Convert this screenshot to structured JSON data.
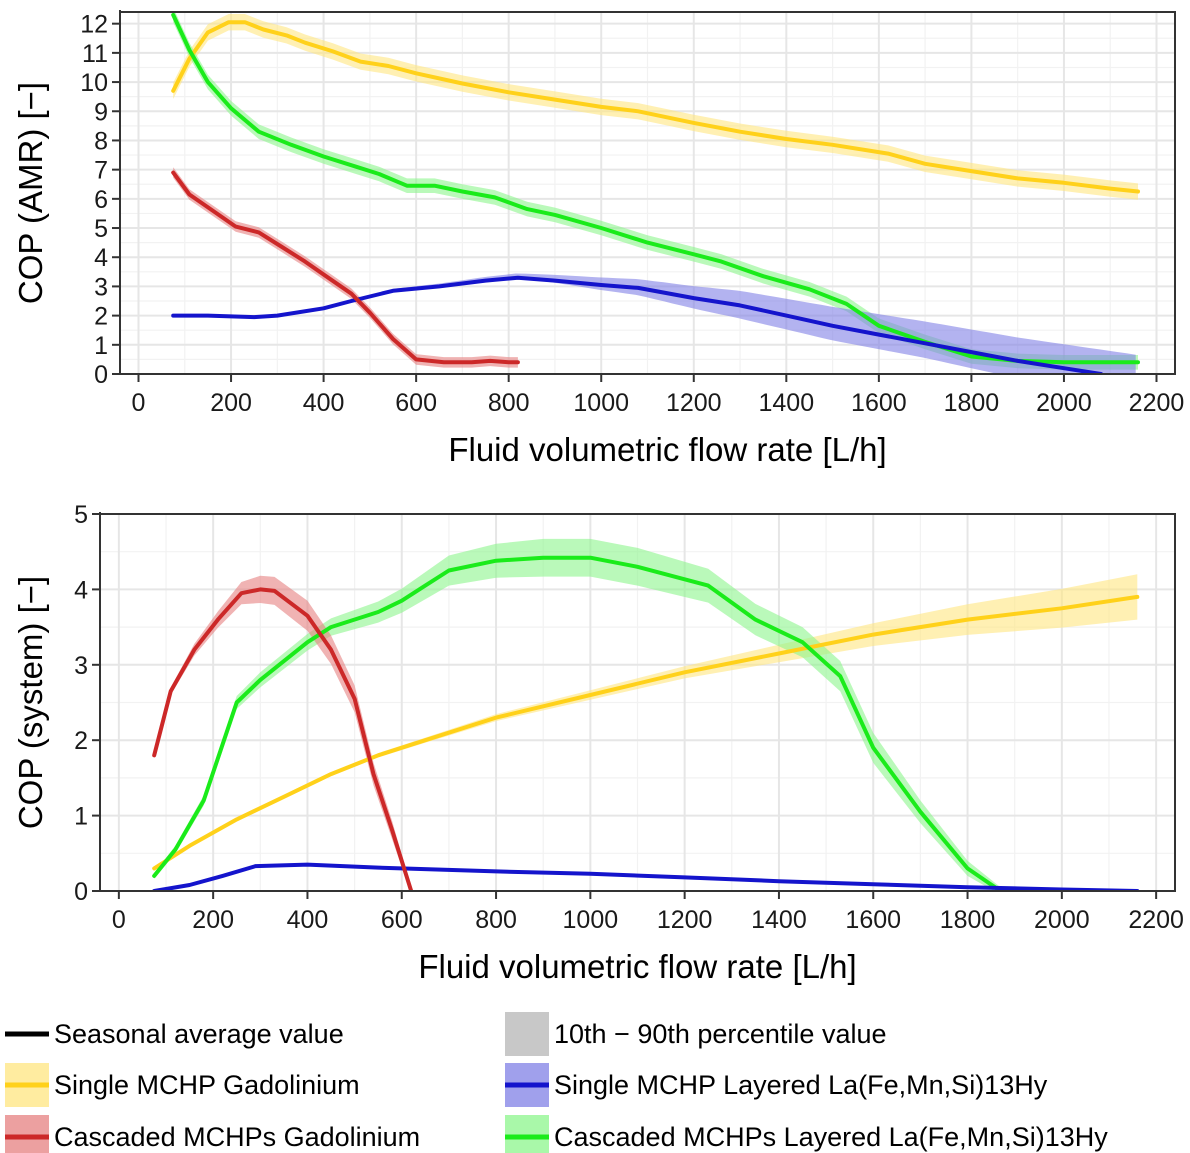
{
  "chart_data": [
    {
      "type": "line",
      "xlabel": "Fluid volumetric flow rate [L/h]",
      "ylabel": "COP (AMR) [−]",
      "xlim": [
        -40,
        2240
      ],
      "ylim": [
        0,
        12.4
      ],
      "xticks": [
        0,
        200,
        400,
        600,
        800,
        1000,
        1200,
        1400,
        1600,
        1800,
        2000,
        2200
      ],
      "yticks": [
        0,
        1,
        2,
        3,
        4,
        5,
        6,
        7,
        8,
        9,
        10,
        11,
        12
      ],
      "grid": true,
      "series": [
        {
          "name": "Single MCHP Gadolinium",
          "color": "#FFD11A",
          "band_color": "#FFE680",
          "points": [
            [
              75,
              9.7
            ],
            [
              110,
              10.8
            ],
            [
              150,
              11.7
            ],
            [
              195,
              12.05
            ],
            [
              230,
              12.05
            ],
            [
              270,
              11.8
            ],
            [
              320,
              11.6
            ],
            [
              360,
              11.35
            ],
            [
              420,
              11.05
            ],
            [
              480,
              10.7
            ],
            [
              540,
              10.55
            ],
            [
              600,
              10.3
            ],
            [
              700,
              9.95
            ],
            [
              800,
              9.65
            ],
            [
              900,
              9.4
            ],
            [
              1000,
              9.15
            ],
            [
              1080,
              9.0
            ],
            [
              1200,
              8.6
            ],
            [
              1300,
              8.3
            ],
            [
              1400,
              8.05
            ],
            [
              1500,
              7.85
            ],
            [
              1620,
              7.55
            ],
            [
              1700,
              7.2
            ],
            [
              1800,
              6.95
            ],
            [
              1900,
              6.7
            ],
            [
              2000,
              6.55
            ],
            [
              2100,
              6.35
            ],
            [
              2160,
              6.25
            ]
          ],
          "band": 0.28
        },
        {
          "name": "Cascaded MCHPs Layered La(Fe,Mn,Si)13Hy",
          "color": "#1AEB1A",
          "band_color": "#8CF58C",
          "points": [
            [
              75,
              12.3
            ],
            [
              110,
              11.1
            ],
            [
              150,
              10.0
            ],
            [
              200,
              9.1
            ],
            [
              260,
              8.3
            ],
            [
              330,
              7.85
            ],
            [
              400,
              7.45
            ],
            [
              470,
              7.1
            ],
            [
              520,
              6.85
            ],
            [
              580,
              6.45
            ],
            [
              640,
              6.45
            ],
            [
              700,
              6.25
            ],
            [
              770,
              6.05
            ],
            [
              840,
              5.65
            ],
            [
              900,
              5.45
            ],
            [
              1000,
              5.0
            ],
            [
              1100,
              4.5
            ],
            [
              1200,
              4.1
            ],
            [
              1260,
              3.85
            ],
            [
              1350,
              3.35
            ],
            [
              1450,
              2.9
            ],
            [
              1530,
              2.4
            ],
            [
              1600,
              1.65
            ],
            [
              1700,
              1.1
            ],
            [
              1800,
              0.6
            ],
            [
              1900,
              0.45
            ],
            [
              2000,
              0.4
            ],
            [
              2160,
              0.4
            ]
          ],
          "band": 0.25
        },
        {
          "name": "Single MCHP Layered La(Fe,Mn,Si)13Hy",
          "color": "#1414CC",
          "band_color": "#8080E6",
          "points": [
            [
              75,
              2.0
            ],
            [
              150,
              2.0
            ],
            [
              250,
              1.95
            ],
            [
              300,
              2.0
            ],
            [
              400,
              2.25
            ],
            [
              460,
              2.5
            ],
            [
              550,
              2.85
            ],
            [
              650,
              3.0
            ],
            [
              750,
              3.2
            ],
            [
              820,
              3.3
            ],
            [
              900,
              3.2
            ],
            [
              1000,
              3.05
            ],
            [
              1080,
              2.95
            ],
            [
              1200,
              2.6
            ],
            [
              1300,
              2.35
            ],
            [
              1400,
              2.0
            ],
            [
              1500,
              1.65
            ],
            [
              1600,
              1.35
            ],
            [
              1700,
              1.05
            ],
            [
              1800,
              0.75
            ],
            [
              1900,
              0.45
            ],
            [
              2000,
              0.2
            ],
            [
              2080,
              0.0
            ]
          ],
          "band_lo": [
            [
              75,
              0
            ],
            [
              300,
              0
            ],
            [
              500,
              0
            ],
            [
              820,
              0
            ],
            [
              1080,
              0.25
            ],
            [
              1300,
              0.45
            ],
            [
              1500,
              0.5
            ],
            [
              1700,
              0.5
            ],
            [
              1900,
              0.6
            ],
            [
              2160,
              0.75
            ]
          ],
          "band_hi": [
            [
              75,
              0
            ],
            [
              300,
              0
            ],
            [
              500,
              0.05
            ],
            [
              820,
              0.15
            ],
            [
              1080,
              0.3
            ],
            [
              1300,
              0.5
            ],
            [
              1500,
              0.65
            ],
            [
              1700,
              0.75
            ],
            [
              1900,
              0.8
            ],
            [
              2160,
              0.85
            ]
          ]
        },
        {
          "name": "Cascaded MCHPs Gadolinium",
          "color": "#CC2828",
          "band_color": "#E68080",
          "points": [
            [
              75,
              6.9
            ],
            [
              110,
              6.15
            ],
            [
              160,
              5.6
            ],
            [
              210,
              5.05
            ],
            [
              260,
              4.85
            ],
            [
              310,
              4.35
            ],
            [
              360,
              3.85
            ],
            [
              410,
              3.3
            ],
            [
              460,
              2.75
            ],
            [
              500,
              2.1
            ],
            [
              550,
              1.2
            ],
            [
              600,
              0.5
            ],
            [
              660,
              0.4
            ],
            [
              720,
              0.4
            ],
            [
              760,
              0.45
            ],
            [
              800,
              0.4
            ],
            [
              820,
              0.4
            ]
          ],
          "band": 0.18
        }
      ]
    },
    {
      "type": "line",
      "xlabel": "Fluid volumetric flow rate [L/h]",
      "ylabel": "COP (system) [−]",
      "xlim": [
        -40,
        2240
      ],
      "ylim": [
        0,
        5
      ],
      "xticks": [
        0,
        200,
        400,
        600,
        800,
        1000,
        1200,
        1400,
        1600,
        1800,
        2000,
        2200
      ],
      "yticks": [
        0,
        1,
        2,
        3,
        4,
        5
      ],
      "grid": true,
      "series": [
        {
          "name": "Single MCHP Gadolinium",
          "color": "#FFD11A",
          "band_color": "#FFE680",
          "points": [
            [
              75,
              0.3
            ],
            [
              150,
              0.6
            ],
            [
              250,
              0.95
            ],
            [
              350,
              1.25
            ],
            [
              450,
              1.55
            ],
            [
              550,
              1.8
            ],
            [
              650,
              2.0
            ],
            [
              800,
              2.3
            ],
            [
              1000,
              2.6
            ],
            [
              1200,
              2.9
            ],
            [
              1400,
              3.15
            ],
            [
              1600,
              3.4
            ],
            [
              1800,
              3.6
            ],
            [
              2000,
              3.75
            ],
            [
              2160,
              3.9
            ]
          ],
          "band_w": [
            [
              75,
              0.02
            ],
            [
              600,
              0.03
            ],
            [
              1200,
              0.08
            ],
            [
              1600,
              0.15
            ],
            [
              2160,
              0.3
            ]
          ]
        },
        {
          "name": "Cascaded MCHPs Layered La(Fe,Mn,Si)13Hy",
          "color": "#1AEB1A",
          "band_color": "#8CF58C",
          "points": [
            [
              75,
              0.2
            ],
            [
              120,
              0.55
            ],
            [
              180,
              1.2
            ],
            [
              250,
              2.5
            ],
            [
              300,
              2.8
            ],
            [
              400,
              3.3
            ],
            [
              450,
              3.5
            ],
            [
              550,
              3.7
            ],
            [
              600,
              3.85
            ],
            [
              650,
              4.05
            ],
            [
              700,
              4.25
            ],
            [
              800,
              4.38
            ],
            [
              900,
              4.42
            ],
            [
              1000,
              4.42
            ],
            [
              1100,
              4.3
            ],
            [
              1250,
              4.05
            ],
            [
              1350,
              3.6
            ],
            [
              1450,
              3.3
            ],
            [
              1530,
              2.85
            ],
            [
              1600,
              1.9
            ],
            [
              1700,
              1.05
            ],
            [
              1800,
              0.3
            ],
            [
              1870,
              0.0
            ]
          ],
          "band_w": [
            [
              75,
              0.04
            ],
            [
              300,
              0.1
            ],
            [
              500,
              0.12
            ],
            [
              700,
              0.2
            ],
            [
              900,
              0.25
            ],
            [
              1100,
              0.25
            ],
            [
              1400,
              0.2
            ],
            [
              1600,
              0.2
            ],
            [
              1800,
              0.1
            ],
            [
              1870,
              0.05
            ]
          ]
        },
        {
          "name": "Single MCHP Layered La(Fe,Mn,Si)13Hy",
          "color": "#1414CC",
          "band_color": "#8080E6",
          "points": [
            [
              75,
              0.0
            ],
            [
              150,
              0.08
            ],
            [
              220,
              0.2
            ],
            [
              290,
              0.33
            ],
            [
              400,
              0.35
            ],
            [
              550,
              0.31
            ],
            [
              800,
              0.26
            ],
            [
              1000,
              0.23
            ],
            [
              1200,
              0.18
            ],
            [
              1400,
              0.13
            ],
            [
              1600,
              0.09
            ],
            [
              1800,
              0.05
            ],
            [
              2000,
              0.02
            ],
            [
              2160,
              0.0
            ]
          ],
          "band_w": [
            [
              75,
              0.0
            ],
            [
              2160,
              0.02
            ]
          ]
        },
        {
          "name": "Cascaded MCHPs Gadolinium",
          "color": "#CC2828",
          "band_color": "#E68080",
          "points": [
            [
              75,
              1.8
            ],
            [
              110,
              2.65
            ],
            [
              160,
              3.2
            ],
            [
              210,
              3.6
            ],
            [
              260,
              3.95
            ],
            [
              300,
              4.0
            ],
            [
              330,
              3.98
            ],
            [
              400,
              3.65
            ],
            [
              450,
              3.2
            ],
            [
              500,
              2.55
            ],
            [
              540,
              1.55
            ],
            [
              580,
              0.8
            ],
            [
              620,
              0.0
            ]
          ],
          "band_w": [
            [
              75,
              0.03
            ],
            [
              200,
              0.1
            ],
            [
              300,
              0.18
            ],
            [
              400,
              0.2
            ],
            [
              500,
              0.18
            ],
            [
              580,
              0.12
            ],
            [
              620,
              0.05
            ]
          ]
        }
      ]
    }
  ],
  "legend": {
    "items": [
      {
        "label": "Seasonal average value",
        "line": "#000000",
        "fill": null
      },
      {
        "label": "10th − 90th percentile value",
        "line": null,
        "fill": "#C8C8C8"
      },
      {
        "label": "Single MCHP Gadolinium",
        "line": "#FFD11A",
        "fill": "#FFE680"
      },
      {
        "label": "Single MCHP Layered La(Fe,Mn,Si)13Hy",
        "line": "#1414CC",
        "fill": "#8080E6"
      },
      {
        "label": "Cascaded MCHPs Gadolinium",
        "line": "#CC2828",
        "fill": "#E68080"
      },
      {
        "label": "Cascaded MCHPs Layered La(Fe,Mn,Si)13Hy",
        "line": "#1AEB1A",
        "fill": "#8CF58C"
      }
    ]
  }
}
